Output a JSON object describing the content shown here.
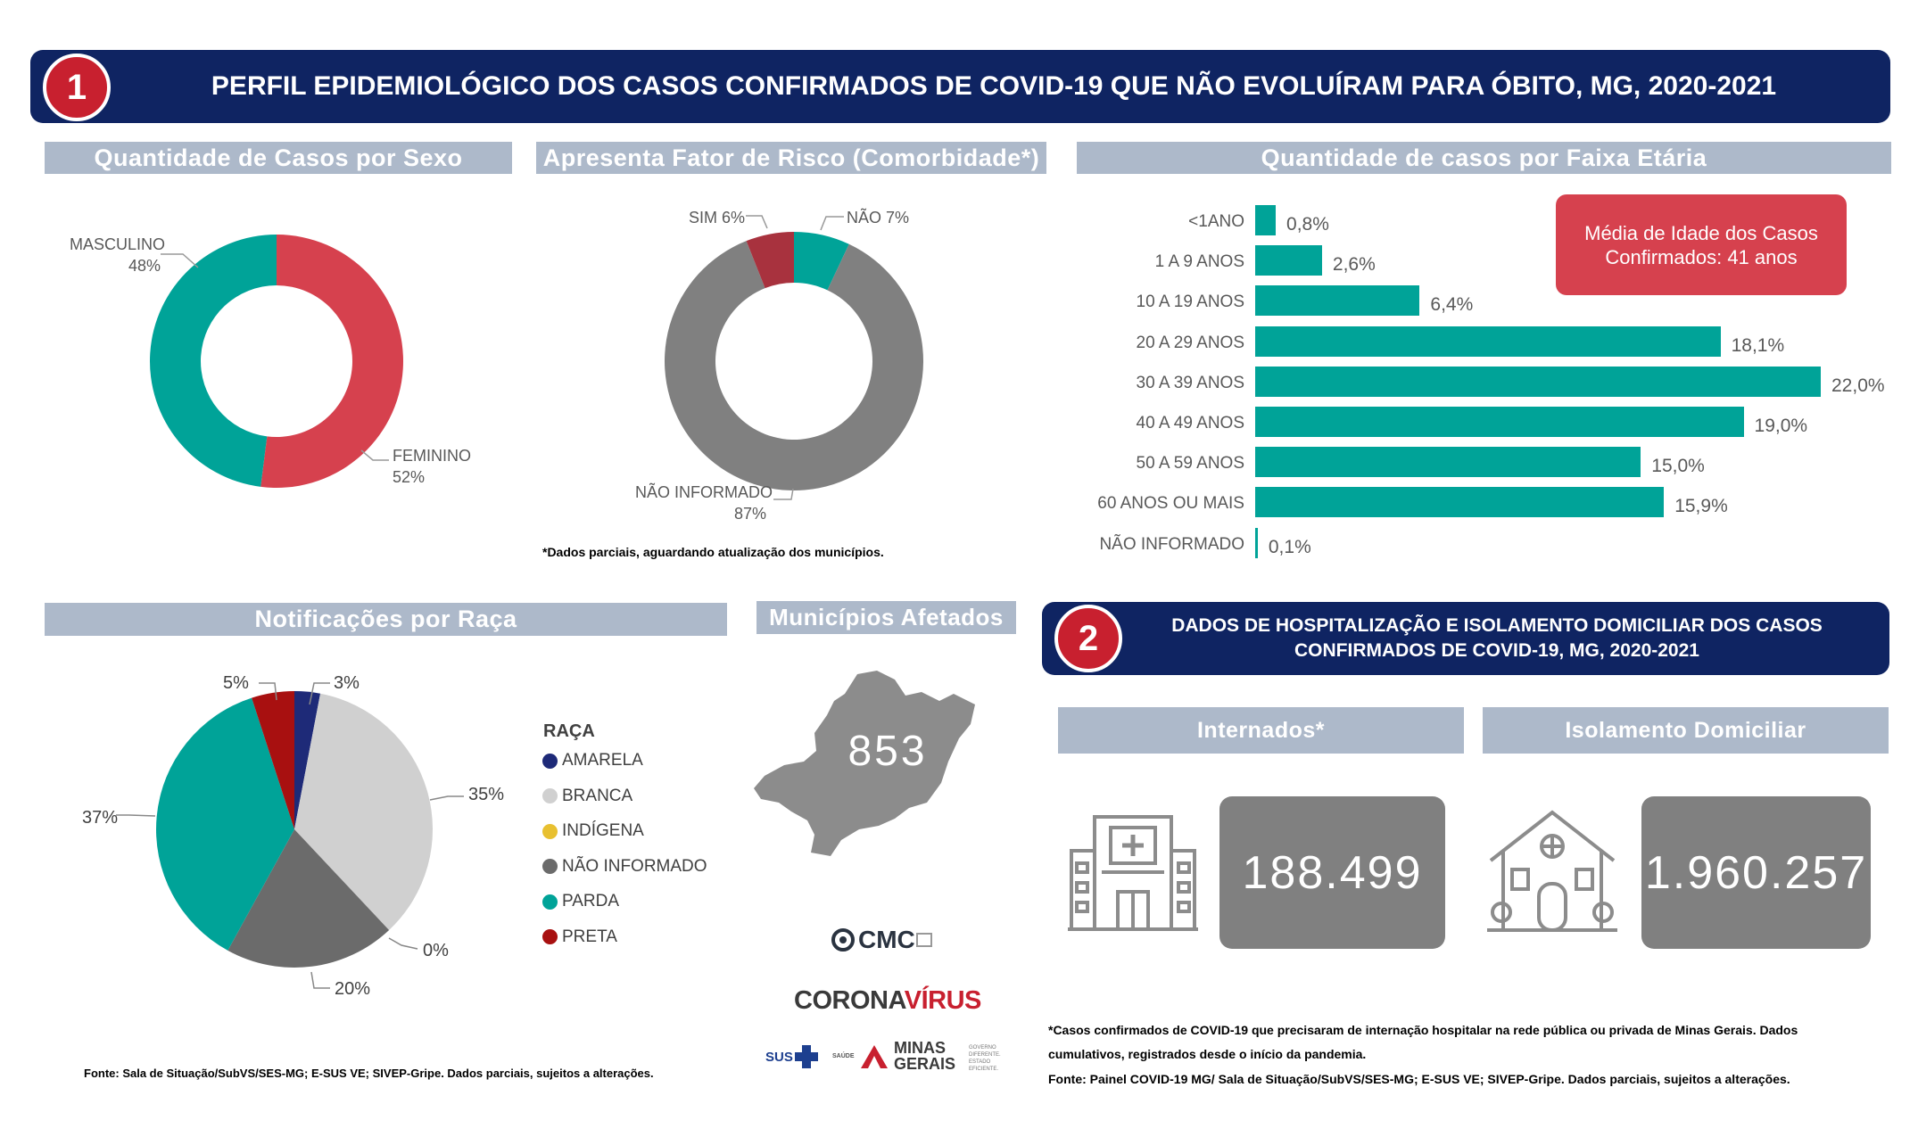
{
  "header1": {
    "number": "1",
    "title": "PERFIL EPIDEMIOLÓGICO DOS CASOS CONFIRMADOS DE COVID-19 QUE NÃO EVOLUÍRAM PARA ÓBITO, MG, 2020-2021"
  },
  "sexo": {
    "title": "Quantidade de Casos por Sexo",
    "labels": [
      {
        "name": "MASCULINO",
        "pct": "48%"
      },
      {
        "name": "FEMININO",
        "pct": "52%"
      }
    ]
  },
  "risco": {
    "title": "Apresenta Fator de Risco (Comorbidade*)",
    "labels": [
      {
        "name": "SIM",
        "pct": "6%"
      },
      {
        "name": "NÃO",
        "pct": "7%"
      },
      {
        "name": "NÃO INFORMADO",
        "pct": "87%"
      }
    ],
    "note": "*Dados parciais, aguardando atualização dos municípios."
  },
  "faixa": {
    "title": "Quantidade de casos por Faixa Etária",
    "media": "Média de Idade dos Casos Confirmados: 41 anos"
  },
  "raca": {
    "title": "Notificações por Raça",
    "legend_title": "RAÇA",
    "slice_labels": [
      "3%",
      "35%",
      "0%",
      "20%",
      "37%",
      "5%"
    ]
  },
  "municipios": {
    "title": "Municípios Afetados",
    "value": "853"
  },
  "logos": {
    "cmc": "CMC",
    "corona": "CORONA",
    "virus": "VÍRUS",
    "sus": "SUS",
    "saude": "SAÚDE",
    "minas": "MINAS",
    "gerais": "GERAIS",
    "governo": "GOVERNO DIFERENTE. ESTADO EFICIENTE."
  },
  "fonte1": "Fonte: Sala de Situação/SubVS/SES-MG; E-SUS VE; SIVEP-Gripe. Dados parciais, sujeitos a alterações.",
  "header2": {
    "number": "2",
    "line1": "DADOS DE HOSPITALIZAÇÃO E ISOLAMENTO DOMICILIAR DOS CASOS",
    "line2": "CONFIRMADOS DE COVID-19, MG, 2020-2021"
  },
  "internados": {
    "title": "Internados*",
    "value": "188.499"
  },
  "isolamento": {
    "title": "Isolamento Domiciliar",
    "value": "1.960.257"
  },
  "notes2": {
    "line1": "*Casos confirmados de COVID-19 que precisaram de internação hospitalar na rede pública ou privada de Minas Gerais. Dados",
    "line2": "cumulativos, registrados desde o início da pandemia.",
    "line3": "Fonte: Painel COVID-19 MG/ Sala de Situação/SubVS/SES-MG; E-SUS VE; SIVEP-Gripe. Dados parciais, sujeitos a alterações."
  },
  "colors": {
    "navy": "#0f2462",
    "teal": "#00a398",
    "red": "#d6414e",
    "gray": "#808080",
    "darkred": "#a8323e",
    "titlebar": "#adb9ca"
  },
  "chart_data": [
    {
      "type": "pie",
      "title": "Quantidade de Casos por Sexo",
      "categories": [
        "MASCULINO",
        "FEMININO"
      ],
      "values": [
        48,
        52
      ],
      "unit": "%",
      "colors": [
        "#00a398",
        "#d6414e"
      ]
    },
    {
      "type": "pie",
      "title": "Apresenta Fator de Risco (Comorbidade*)",
      "categories": [
        "SIM",
        "NÃO",
        "NÃO INFORMADO"
      ],
      "values": [
        6,
        7,
        87
      ],
      "unit": "%",
      "colors": [
        "#a8323e",
        "#00a398",
        "#808080"
      ]
    },
    {
      "type": "bar",
      "title": "Quantidade de casos por Faixa Etária",
      "orientation": "horizontal",
      "categories": [
        "<1ANO",
        "1 A 9 ANOS",
        "10 A 19 ANOS",
        "20 A 29 ANOS",
        "30 A 39 ANOS",
        "40 A 49 ANOS",
        "50 A 59 ANOS",
        "60 ANOS OU MAIS",
        "NÃO INFORMADO"
      ],
      "values": [
        0.8,
        2.6,
        6.4,
        18.1,
        22.0,
        19.0,
        15.0,
        15.9,
        0.1
      ],
      "value_labels": [
        "0,8%",
        "2,6%",
        "6,4%",
        "18,1%",
        "22,0%",
        "19,0%",
        "15,0%",
        "15,9%",
        "0,1%"
      ],
      "color": "#00a398",
      "xlim": [
        0,
        22.0
      ]
    },
    {
      "type": "pie",
      "title": "Notificações por Raça",
      "categories": [
        "AMARELA",
        "BRANCA",
        "INDÍGENA",
        "NÃO INFORMADO",
        "PARDA",
        "PRETA"
      ],
      "values": [
        3,
        35,
        0,
        20,
        37,
        5
      ],
      "unit": "%",
      "colors": [
        "#1e2a78",
        "#d0d0d0",
        "#e8c030",
        "#6b6b6b",
        "#00a398",
        "#a81010"
      ]
    }
  ]
}
